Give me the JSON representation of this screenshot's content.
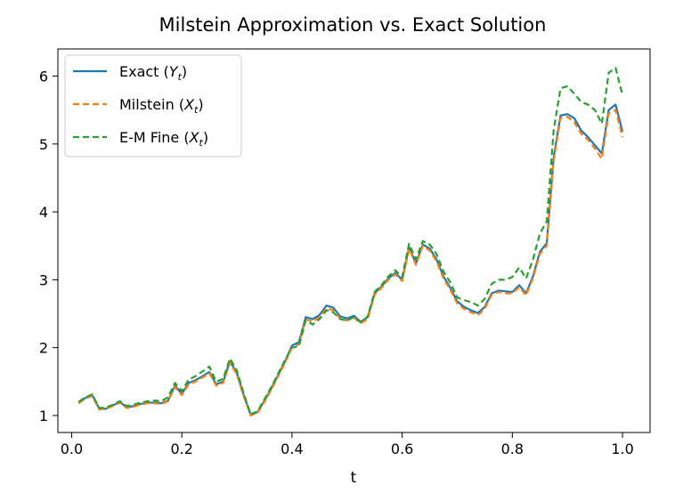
{
  "chart_data": {
    "type": "line",
    "title": "Milstein Approximation vs. Exact Solution",
    "xlabel": "t",
    "ylabel": "",
    "xlim": [
      -0.025,
      1.05
    ],
    "ylim": [
      0.75,
      6.4
    ],
    "xticks": [
      0.0,
      0.2,
      0.4,
      0.6,
      0.8,
      1.0
    ],
    "xtick_labels": [
      "0.0",
      "0.2",
      "0.4",
      "0.6",
      "0.8",
      "1.0"
    ],
    "yticks": [
      1,
      2,
      3,
      4,
      5,
      6
    ],
    "ytick_labels": [
      "1",
      "2",
      "3",
      "4",
      "5",
      "6"
    ],
    "grid": false,
    "legend_position": "upper-left",
    "x": [
      0.0125,
      0.025,
      0.0375,
      0.05,
      0.0625,
      0.075,
      0.0875,
      0.1,
      0.1125,
      0.125,
      0.1375,
      0.15,
      0.1625,
      0.175,
      0.1875,
      0.2,
      0.2125,
      0.225,
      0.2375,
      0.25,
      0.2625,
      0.275,
      0.2875,
      0.3,
      0.3125,
      0.325,
      0.3375,
      0.35,
      0.3625,
      0.375,
      0.3875,
      0.4,
      0.4125,
      0.425,
      0.4375,
      0.45,
      0.4625,
      0.475,
      0.4875,
      0.5,
      0.5125,
      0.525,
      0.5375,
      0.55,
      0.5625,
      0.575,
      0.5875,
      0.6,
      0.6125,
      0.625,
      0.6375,
      0.65,
      0.6625,
      0.675,
      0.6875,
      0.7,
      0.7125,
      0.725,
      0.7375,
      0.75,
      0.7625,
      0.775,
      0.7875,
      0.8,
      0.8125,
      0.825,
      0.8375,
      0.85,
      0.8625,
      0.875,
      0.8875,
      0.9,
      0.9125,
      0.925,
      0.9375,
      0.95,
      0.9625,
      0.975,
      0.9875,
      1.0
    ],
    "series": [
      {
        "name": "Exact (Y_t)",
        "legend_main": "Exact (",
        "legend_var": "Y",
        "legend_sub": "t",
        "legend_close": ")",
        "color": "#1f77b4",
        "style": "solid",
        "values": [
          1.18,
          1.26,
          1.3,
          1.1,
          1.1,
          1.15,
          1.2,
          1.12,
          1.14,
          1.17,
          1.19,
          1.19,
          1.18,
          1.22,
          1.44,
          1.32,
          1.48,
          1.52,
          1.58,
          1.64,
          1.46,
          1.5,
          1.8,
          1.62,
          1.3,
          1.01,
          1.05,
          1.22,
          1.4,
          1.6,
          1.8,
          2.03,
          2.08,
          2.45,
          2.42,
          2.48,
          2.62,
          2.59,
          2.46,
          2.43,
          2.47,
          2.38,
          2.45,
          2.8,
          2.9,
          3.02,
          3.1,
          3.0,
          3.48,
          3.24,
          3.52,
          3.46,
          3.3,
          3.05,
          2.88,
          2.68,
          2.6,
          2.55,
          2.51,
          2.6,
          2.8,
          2.84,
          2.83,
          2.82,
          2.92,
          2.8,
          3.05,
          3.41,
          3.54,
          4.8,
          5.42,
          5.44,
          5.38,
          5.2,
          5.1,
          4.98,
          4.86,
          5.5,
          5.58,
          5.18
        ]
      },
      {
        "name": "Milstein (X_t)",
        "legend_main": "Milstein (",
        "legend_var": "X",
        "legend_sub": "t",
        "legend_close": ")",
        "color": "#ff7f0e",
        "style": "dashed",
        "values": [
          1.18,
          1.25,
          1.29,
          1.09,
          1.1,
          1.14,
          1.19,
          1.11,
          1.13,
          1.16,
          1.18,
          1.18,
          1.17,
          1.21,
          1.42,
          1.3,
          1.46,
          1.5,
          1.56,
          1.62,
          1.44,
          1.48,
          1.78,
          1.6,
          1.28,
          1.0,
          1.04,
          1.2,
          1.38,
          1.58,
          1.78,
          2.0,
          2.05,
          2.42,
          2.38,
          2.45,
          2.58,
          2.55,
          2.43,
          2.4,
          2.44,
          2.36,
          2.42,
          2.78,
          2.88,
          3.0,
          3.08,
          2.98,
          3.46,
          3.22,
          3.5,
          3.43,
          3.27,
          3.02,
          2.85,
          2.65,
          2.57,
          2.52,
          2.48,
          2.57,
          2.78,
          2.82,
          2.8,
          2.8,
          2.89,
          2.77,
          3.02,
          3.38,
          3.5,
          4.75,
          5.38,
          5.4,
          5.32,
          5.15,
          5.06,
          4.93,
          4.78,
          5.45,
          5.5,
          5.1
        ]
      },
      {
        "name": "E-M Fine (X_t)",
        "legend_main": "E-M Fine (",
        "legend_var": "X",
        "legend_sub": "t",
        "legend_close": ")",
        "color": "#2ca02c",
        "style": "dashed",
        "values": [
          1.2,
          1.27,
          1.31,
          1.11,
          1.12,
          1.16,
          1.21,
          1.14,
          1.16,
          1.19,
          1.21,
          1.22,
          1.21,
          1.27,
          1.48,
          1.36,
          1.53,
          1.58,
          1.65,
          1.72,
          1.5,
          1.54,
          1.84,
          1.66,
          1.32,
          1.02,
          1.06,
          1.24,
          1.42,
          1.62,
          1.82,
          2.0,
          2.02,
          2.4,
          2.34,
          2.42,
          2.55,
          2.52,
          2.42,
          2.4,
          2.45,
          2.37,
          2.46,
          2.82,
          2.92,
          3.05,
          3.14,
          3.04,
          3.53,
          3.3,
          3.57,
          3.52,
          3.38,
          3.12,
          2.96,
          2.74,
          2.7,
          2.67,
          2.62,
          2.72,
          2.94,
          3.0,
          3.0,
          3.04,
          3.18,
          3.02,
          3.3,
          3.68,
          3.86,
          5.2,
          5.82,
          5.85,
          5.74,
          5.62,
          5.58,
          5.5,
          5.3,
          6.05,
          6.12,
          5.72
        ]
      }
    ]
  }
}
